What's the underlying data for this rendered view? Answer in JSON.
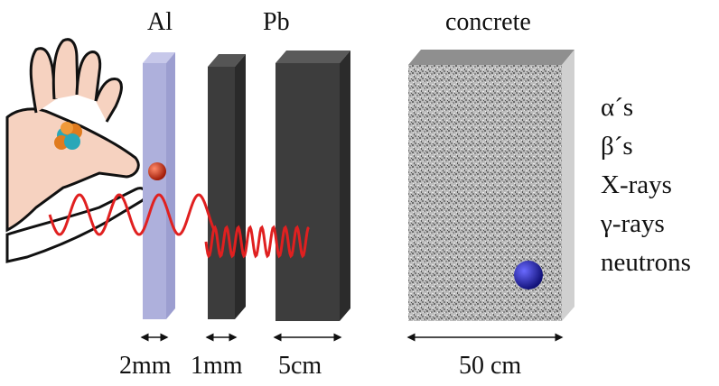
{
  "materials": [
    {
      "name": "Al",
      "thickness": "2mm"
    },
    {
      "name": "",
      "thickness": "1mm"
    },
    {
      "name": "Pb",
      "thickness": "5cm"
    },
    {
      "name": "concrete",
      "thickness": "50 cm"
    }
  ],
  "radiation_types": [
    "α´s",
    "β´s",
    "X-rays",
    "γ-rays",
    "neutrons"
  ],
  "colors": {
    "aluminum": "#aeb0dc",
    "shield_dark": "#3a3a3a",
    "wave": "#e02020",
    "beta_ball": "#c0321a",
    "neutron_ball": "#2a2ac0",
    "concrete_base": "#b8b8b8"
  },
  "icons": {
    "hand": "hand-holding-atom-icon",
    "atom": "atom-nucleus-icon"
  }
}
